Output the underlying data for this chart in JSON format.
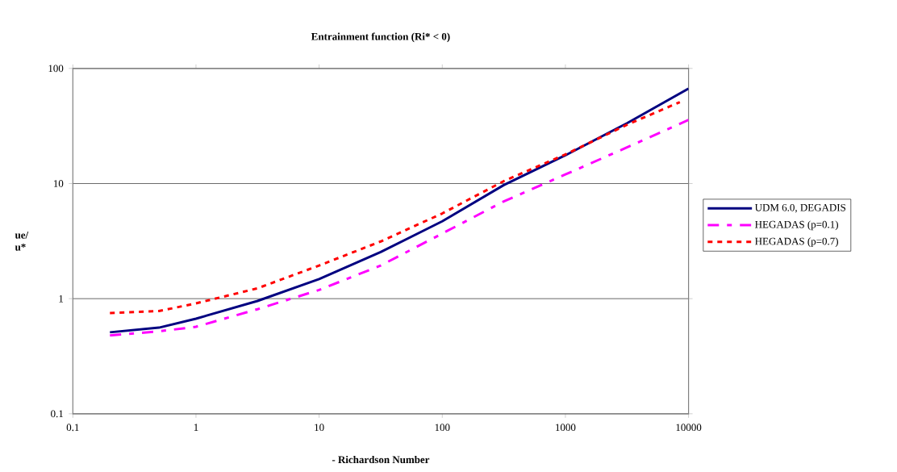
{
  "chart_data": {
    "type": "line",
    "title": "Entrainment function (Ri* < 0)",
    "xlabel": "- Richardson Number",
    "ylabel": "ue/ u*",
    "log": "xy",
    "xlim": [
      0.1,
      10000
    ],
    "ylim": [
      0.1,
      100
    ],
    "xticks": [
      0.1,
      1,
      10,
      100,
      1000,
      10000
    ],
    "yticks": [
      0.1,
      1,
      10,
      100
    ],
    "grid": "y",
    "legend": "right",
    "marker": "none",
    "series": [
      {
        "name": "UDM 6.0, DEGADIS",
        "color": "#000080",
        "line_style": "solid",
        "x": [
          0.2,
          0.5,
          1,
          3.16,
          10,
          31.6,
          100,
          316,
          1000,
          3162,
          10000
        ],
        "values": [
          0.51,
          0.56,
          0.67,
          0.955,
          1.48,
          2.54,
          4.7,
          9.7,
          17.6,
          33.4,
          66.8
        ]
      },
      {
        "name": "HEGADAS  (p=0.1)",
        "color": "#ff00ff",
        "line_style": "dashed",
        "x": [
          0.2,
          0.5,
          1,
          3.16,
          10,
          31.6,
          100,
          316,
          1000,
          3162,
          10000
        ],
        "values": [
          0.48,
          0.52,
          0.57,
          0.81,
          1.19,
          1.94,
          3.68,
          7.0,
          12.0,
          20.6,
          35.7
        ]
      },
      {
        "name": "HEGADAS  (p=0.7)",
        "color": "#ff0000",
        "line_style": "dotted",
        "x": [
          0.2,
          0.5,
          1,
          3.16,
          10,
          31.6,
          100,
          316,
          1000,
          3162,
          8500
        ],
        "values": [
          0.75,
          0.78,
          0.91,
          1.23,
          1.94,
          3.14,
          5.5,
          10.5,
          17.9,
          32.4,
          51
        ]
      }
    ]
  }
}
